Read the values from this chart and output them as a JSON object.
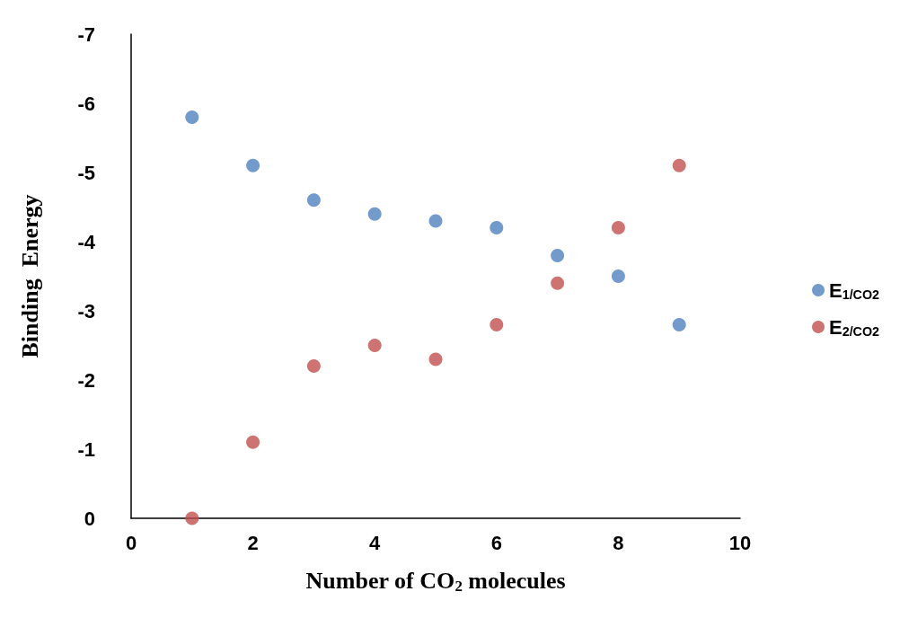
{
  "chart_data": {
    "type": "scatter",
    "xlabel": "Number of CO$_{2}$ molecules",
    "ylabel": "Binding  Energy",
    "x": [
      1,
      2,
      3,
      4,
      5,
      6,
      7,
      8,
      9
    ],
    "series": [
      {
        "name": "E$_{1/CO2}$",
        "color": "#4f81bd",
        "values": [
          -5.8,
          -5.1,
          -4.6,
          -4.4,
          -4.3,
          -4.2,
          -3.8,
          -3.5,
          -2.8
        ]
      },
      {
        "name": "E$_{2/CO2}$",
        "color": "#c0504d",
        "values": [
          0,
          -1.1,
          -2.2,
          -2.5,
          -2.3,
          -2.8,
          -3.4,
          -4.2,
          -5.1
        ]
      }
    ],
    "xlim": [
      0,
      10
    ],
    "xticks": [
      0,
      2,
      4,
      6,
      8,
      10
    ],
    "ylim": [
      0,
      -7
    ],
    "yticks": [
      0,
      -1,
      -2,
      -3,
      -4,
      -5,
      -6,
      -7
    ],
    "grid": false,
    "legend": "right",
    "marker": "circle"
  }
}
